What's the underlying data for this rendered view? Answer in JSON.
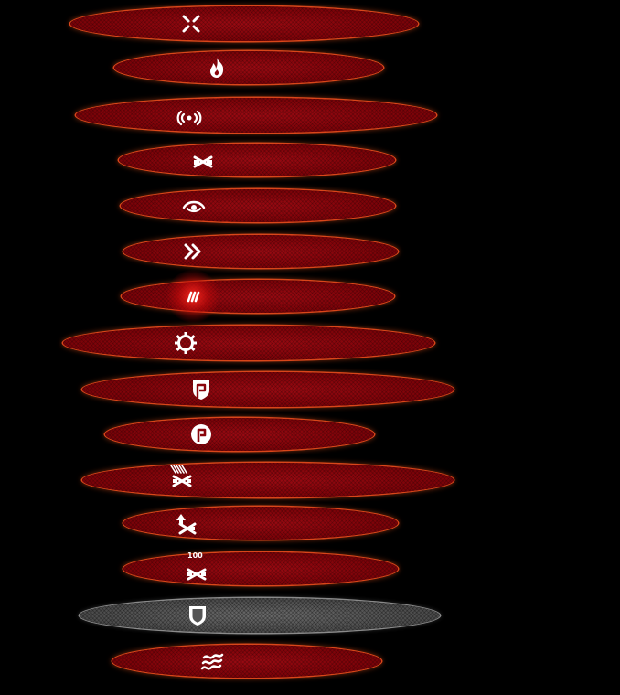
{
  "screen": {
    "background": "#000000"
  },
  "colors": {
    "bar_fill": "#7e0309",
    "bar_outline": "#d9461a",
    "disabled_fill": "#4c4c4c",
    "icon": "#ffffff"
  },
  "buttons": [
    {
      "id": "close",
      "icon": "close-x-icon",
      "state": "normal"
    },
    {
      "id": "fire",
      "icon": "flame-icon",
      "state": "normal"
    },
    {
      "id": "signal",
      "icon": "signal-waves-icon",
      "state": "normal"
    },
    {
      "id": "cross-weapons",
      "icon": "crossed-weapons-icon",
      "state": "normal"
    },
    {
      "id": "eye",
      "icon": "eye-icon",
      "state": "normal"
    },
    {
      "id": "fast-forward",
      "icon": "double-chevron-icon",
      "state": "normal"
    },
    {
      "id": "claw",
      "icon": "claw-slash-icon",
      "state": "active"
    },
    {
      "id": "gear",
      "icon": "gear-icon",
      "state": "normal"
    },
    {
      "id": "shield-flag",
      "icon": "shield-flag-icon",
      "state": "normal"
    },
    {
      "id": "circle-flag",
      "icon": "circle-flag-icon",
      "state": "normal"
    },
    {
      "id": "weapons-ammo",
      "icon": "weapons-ammo-icon",
      "state": "normal"
    },
    {
      "id": "weapons-upgrade",
      "icon": "weapons-upgrade-icon",
      "state": "normal"
    },
    {
      "id": "weapons-100",
      "icon": "weapons-count-icon",
      "state": "normal",
      "label": "100"
    },
    {
      "id": "shield",
      "icon": "shield-icon",
      "state": "disabled"
    },
    {
      "id": "heat-waves",
      "icon": "heat-waves-icon",
      "state": "normal"
    }
  ]
}
